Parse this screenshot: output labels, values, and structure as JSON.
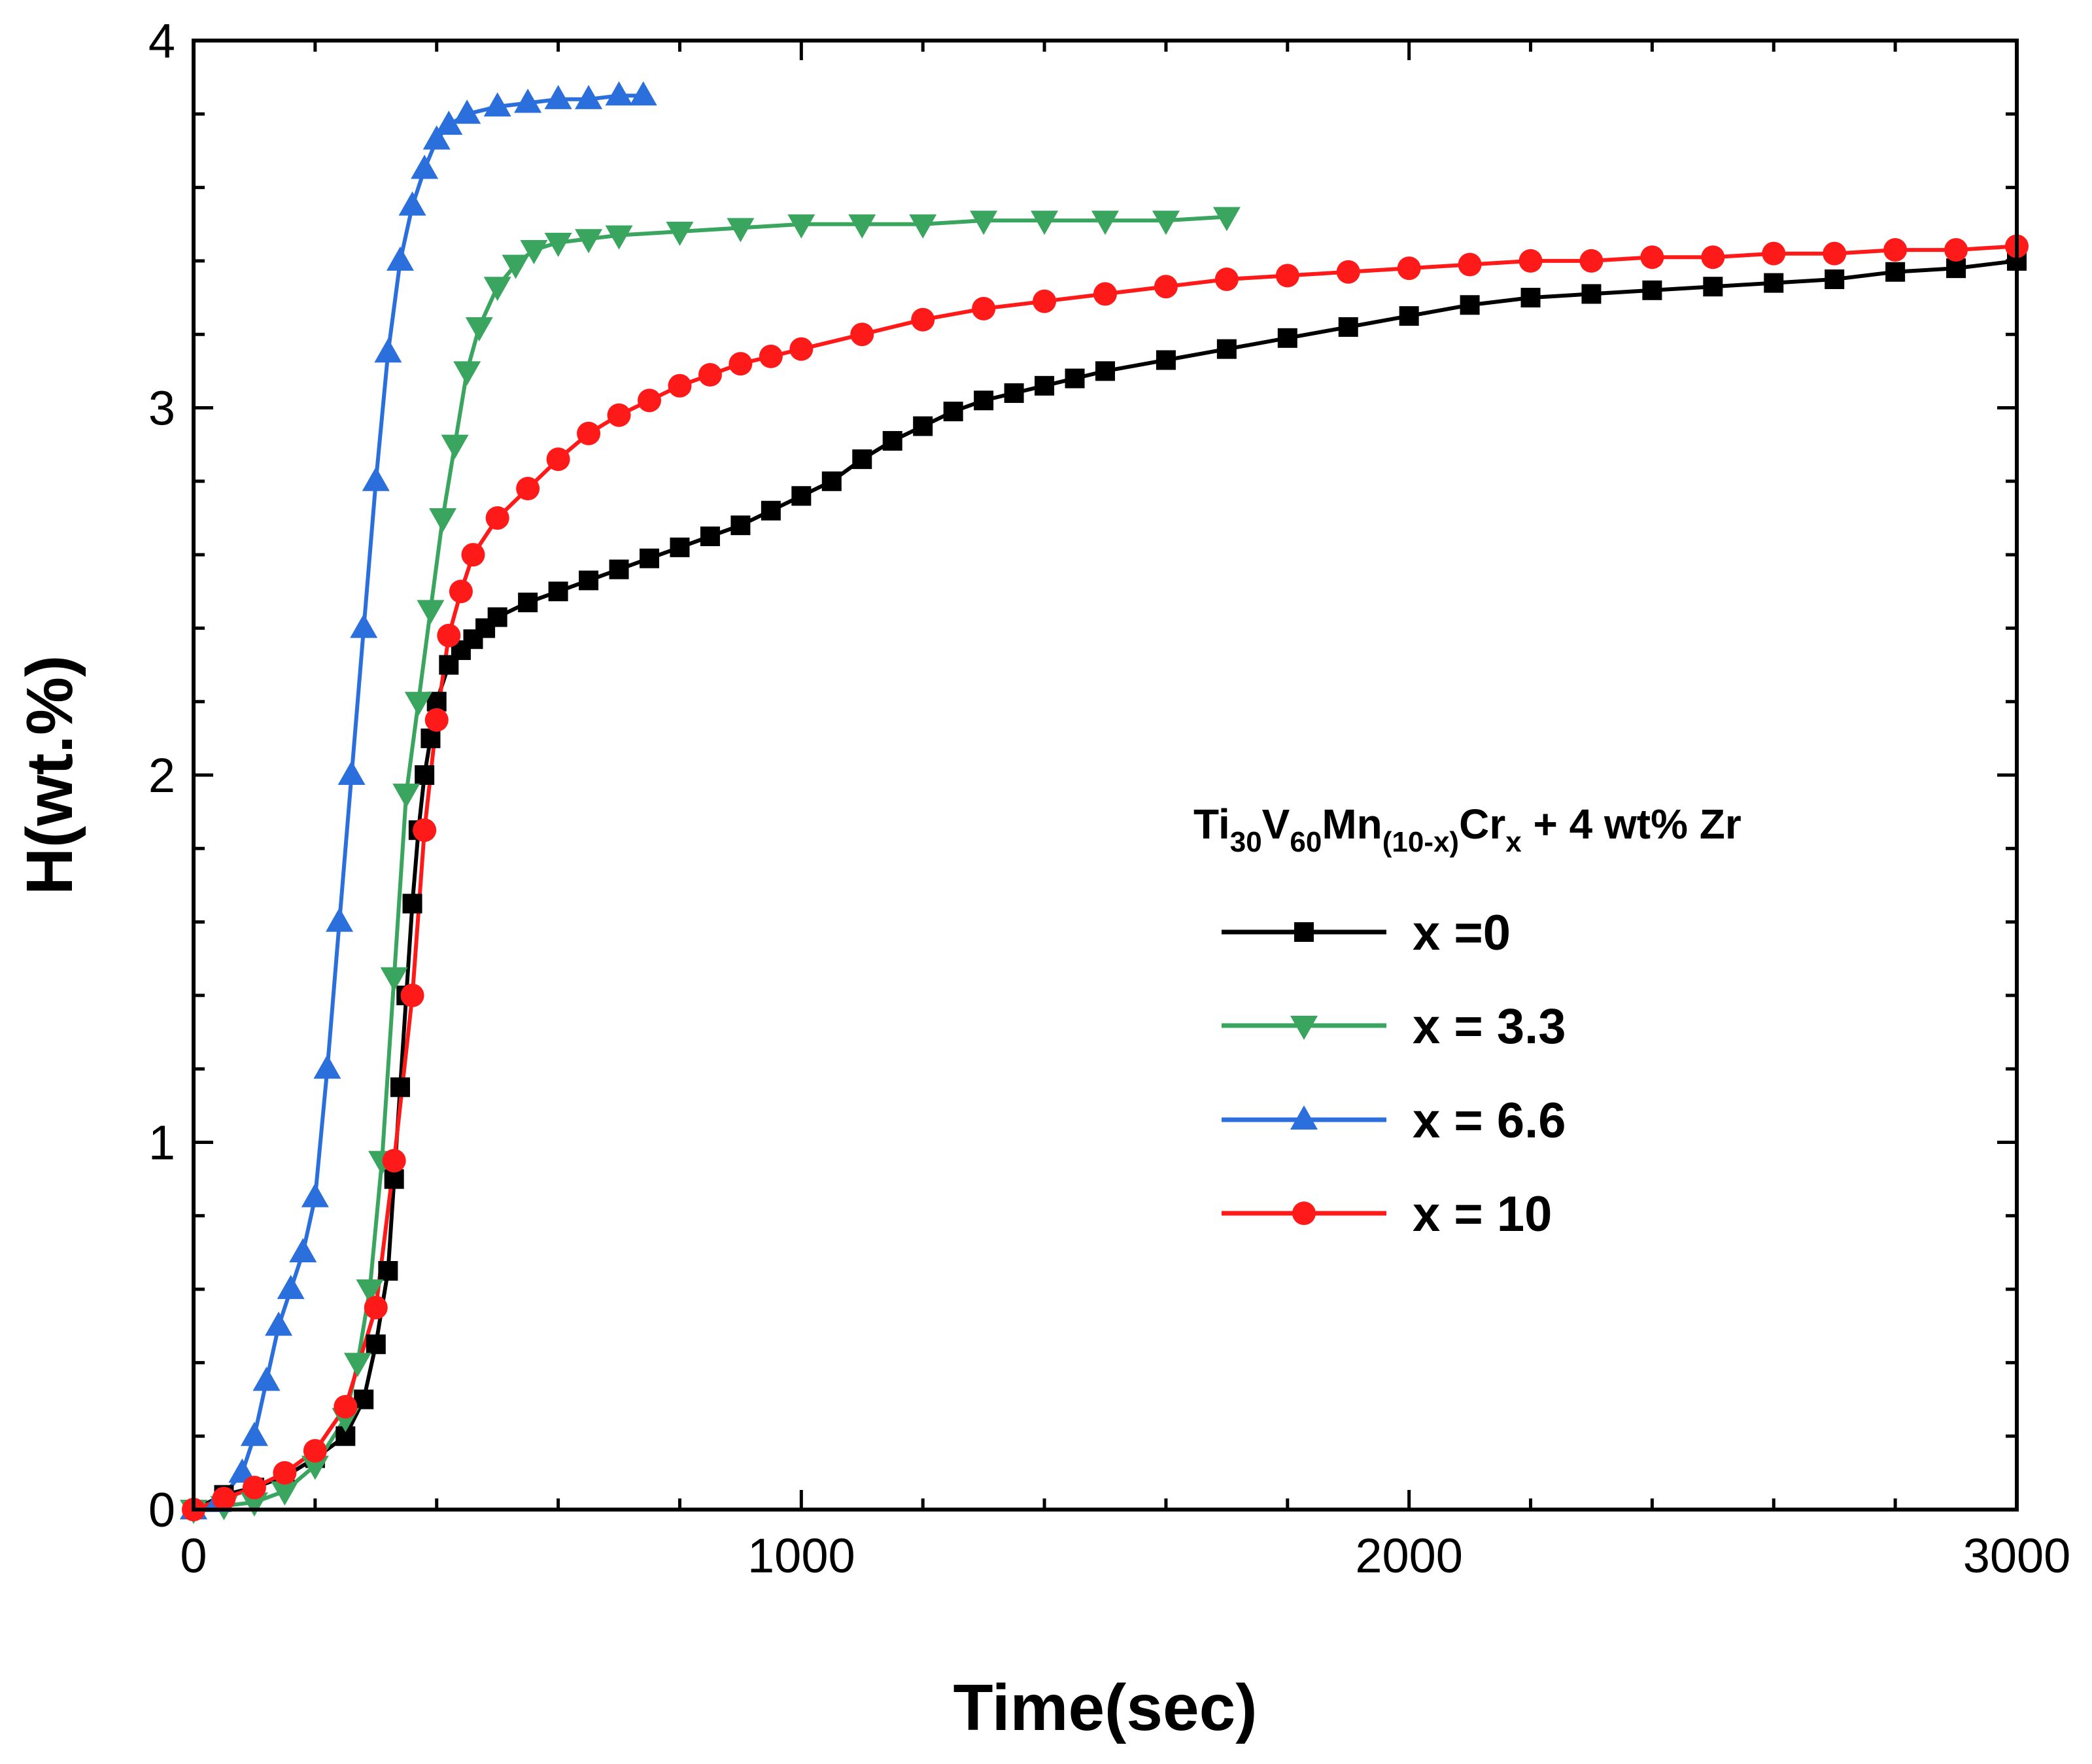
{
  "chart_data": {
    "type": "line",
    "title": "",
    "xlabel": "Time(sec)",
    "ylabel": "H(wt.%)",
    "xlim": [
      0,
      3000
    ],
    "ylim": [
      0,
      4
    ],
    "x_ticks": [
      0,
      1000,
      2000,
      3000
    ],
    "y_ticks": [
      0,
      1,
      2,
      3,
      4
    ],
    "x_minor_step": 200,
    "y_minor_step": 0.2,
    "grid": false,
    "legend_position": "center-right",
    "legend_title": {
      "base": "Ti",
      "sub1": "30",
      "el2": "V",
      "sub2": "60",
      "el3": "Mn",
      "sub3": "(10-x)",
      "el4": "Cr",
      "sub4": "x",
      "suffix": " + 4 wt% Zr"
    },
    "series": [
      {
        "name": "x =0",
        "color": "#000000",
        "marker": "square",
        "x": [
          0,
          50,
          100,
          150,
          200,
          250,
          280,
          300,
          320,
          330,
          340,
          350,
          360,
          370,
          380,
          390,
          400,
          420,
          440,
          460,
          480,
          500,
          550,
          600,
          650,
          700,
          750,
          800,
          850,
          900,
          950,
          1000,
          1050,
          1100,
          1150,
          1200,
          1250,
          1300,
          1350,
          1400,
          1450,
          1500,
          1600,
          1700,
          1800,
          1900,
          2000,
          2100,
          2200,
          2300,
          2400,
          2500,
          2600,
          2700,
          2800,
          2900,
          3000
        ],
        "y": [
          0,
          0.04,
          0.06,
          0.09,
          0.14,
          0.2,
          0.3,
          0.45,
          0.65,
          0.9,
          1.15,
          1.4,
          1.65,
          1.85,
          2.0,
          2.1,
          2.2,
          2.3,
          2.34,
          2.37,
          2.4,
          2.43,
          2.47,
          2.5,
          2.53,
          2.56,
          2.59,
          2.62,
          2.65,
          2.68,
          2.72,
          2.76,
          2.8,
          2.86,
          2.91,
          2.95,
          2.99,
          3.02,
          3.04,
          3.06,
          3.08,
          3.1,
          3.13,
          3.16,
          3.19,
          3.22,
          3.25,
          3.28,
          3.3,
          3.31,
          3.32,
          3.33,
          3.34,
          3.35,
          3.37,
          3.38,
          3.4
        ]
      },
      {
        "name": "x = 3.3",
        "color": "#3aa55f",
        "marker": "triangle-down",
        "x": [
          0,
          50,
          100,
          150,
          200,
          250,
          270,
          290,
          310,
          330,
          350,
          370,
          390,
          410,
          430,
          450,
          470,
          500,
          530,
          560,
          600,
          650,
          700,
          800,
          900,
          1000,
          1100,
          1200,
          1300,
          1400,
          1500,
          1600,
          1700
        ],
        "y": [
          0,
          0.01,
          0.02,
          0.05,
          0.12,
          0.25,
          0.4,
          0.6,
          0.95,
          1.45,
          1.95,
          2.2,
          2.45,
          2.7,
          2.9,
          3.1,
          3.22,
          3.33,
          3.39,
          3.43,
          3.45,
          3.46,
          3.47,
          3.48,
          3.49,
          3.5,
          3.5,
          3.5,
          3.51,
          3.51,
          3.51,
          3.51,
          3.52
        ]
      },
      {
        "name": "x = 6.6",
        "color": "#2a6fdb",
        "marker": "triangle-up",
        "x": [
          0,
          40,
          80,
          100,
          120,
          140,
          160,
          180,
          200,
          220,
          240,
          260,
          280,
          300,
          320,
          340,
          360,
          380,
          400,
          420,
          450,
          500,
          550,
          600,
          650,
          700,
          740
        ],
        "y": [
          0,
          0.02,
          0.1,
          0.2,
          0.35,
          0.5,
          0.6,
          0.7,
          0.85,
          1.2,
          1.6,
          2.0,
          2.4,
          2.8,
          3.15,
          3.4,
          3.55,
          3.65,
          3.73,
          3.77,
          3.8,
          3.82,
          3.83,
          3.84,
          3.84,
          3.85,
          3.85
        ]
      },
      {
        "name": "x = 10",
        "color": "#ff1a1a",
        "marker": "circle",
        "x": [
          0,
          50,
          100,
          150,
          200,
          250,
          300,
          330,
          360,
          380,
          400,
          420,
          440,
          460,
          500,
          550,
          600,
          650,
          700,
          750,
          800,
          850,
          900,
          950,
          1000,
          1100,
          1200,
          1300,
          1400,
          1500,
          1600,
          1700,
          1800,
          1900,
          2000,
          2100,
          2200,
          2300,
          2400,
          2500,
          2600,
          2700,
          2800,
          2900,
          3000
        ],
        "y": [
          0,
          0.03,
          0.06,
          0.1,
          0.16,
          0.28,
          0.55,
          0.95,
          1.4,
          1.85,
          2.15,
          2.38,
          2.5,
          2.6,
          2.7,
          2.78,
          2.86,
          2.93,
          2.98,
          3.02,
          3.06,
          3.09,
          3.12,
          3.14,
          3.16,
          3.2,
          3.24,
          3.27,
          3.29,
          3.31,
          3.33,
          3.35,
          3.36,
          3.37,
          3.38,
          3.39,
          3.4,
          3.4,
          3.41,
          3.41,
          3.42,
          3.42,
          3.43,
          3.43,
          3.44
        ]
      }
    ]
  }
}
